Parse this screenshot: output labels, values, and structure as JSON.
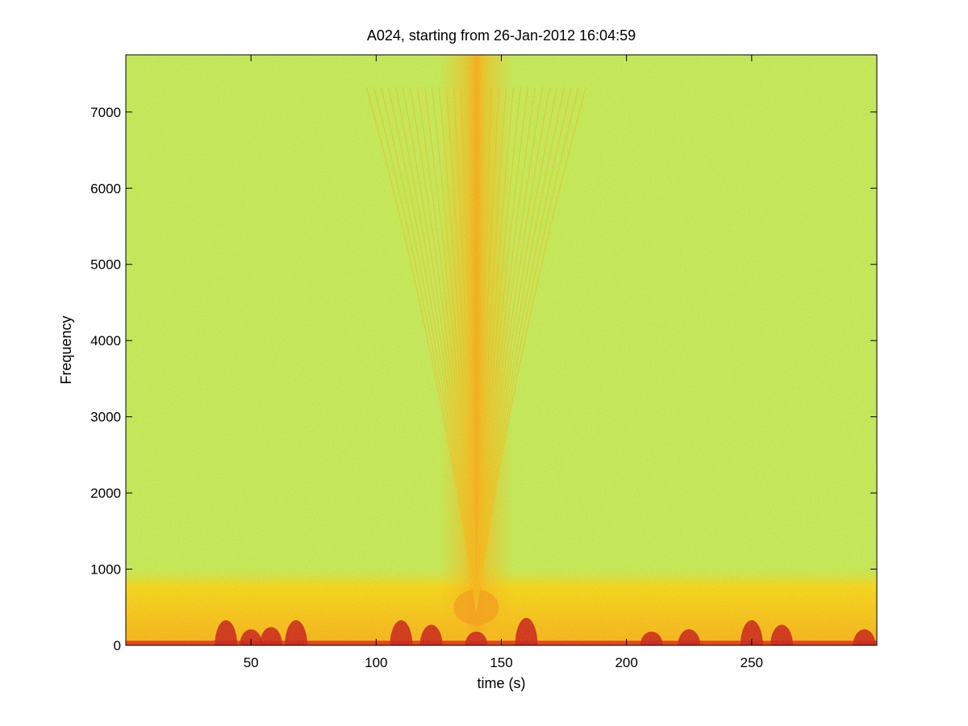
{
  "chart_data": {
    "type": "heatmap",
    "title": "A024, starting from 26-Jan-2012 16:04:59",
    "xlabel": "time (s)",
    "ylabel": "Frequency",
    "xlim": [
      0,
      300
    ],
    "ylim": [
      0,
      7750
    ],
    "x_ticks": [
      50,
      100,
      150,
      200,
      250
    ],
    "y_ticks": [
      0,
      1000,
      2000,
      3000,
      4000,
      5000,
      6000,
      7000
    ],
    "colormap": [
      "#1de0d0",
      "#40f0a0",
      "#80f070",
      "#e8f030",
      "#ffff00",
      "#ff9000",
      "#e01000",
      "#a00000"
    ],
    "background_level": 0.38,
    "features": [
      {
        "kind": "low_freq_band",
        "freq_range": [
          0,
          700
        ],
        "level": 0.62
      },
      {
        "kind": "broadband_peak",
        "time": 140,
        "freq_range": [
          400,
          7750
        ],
        "level": 0.66
      },
      {
        "kind": "harmonic_arcs",
        "time": 140,
        "count": 14
      },
      {
        "kind": "low_freq_bursts",
        "times": [
          40,
          50,
          58,
          68,
          110,
          122,
          140,
          160,
          210,
          225,
          250,
          262,
          295
        ],
        "freq_max": 300,
        "level": 0.9
      }
    ]
  }
}
